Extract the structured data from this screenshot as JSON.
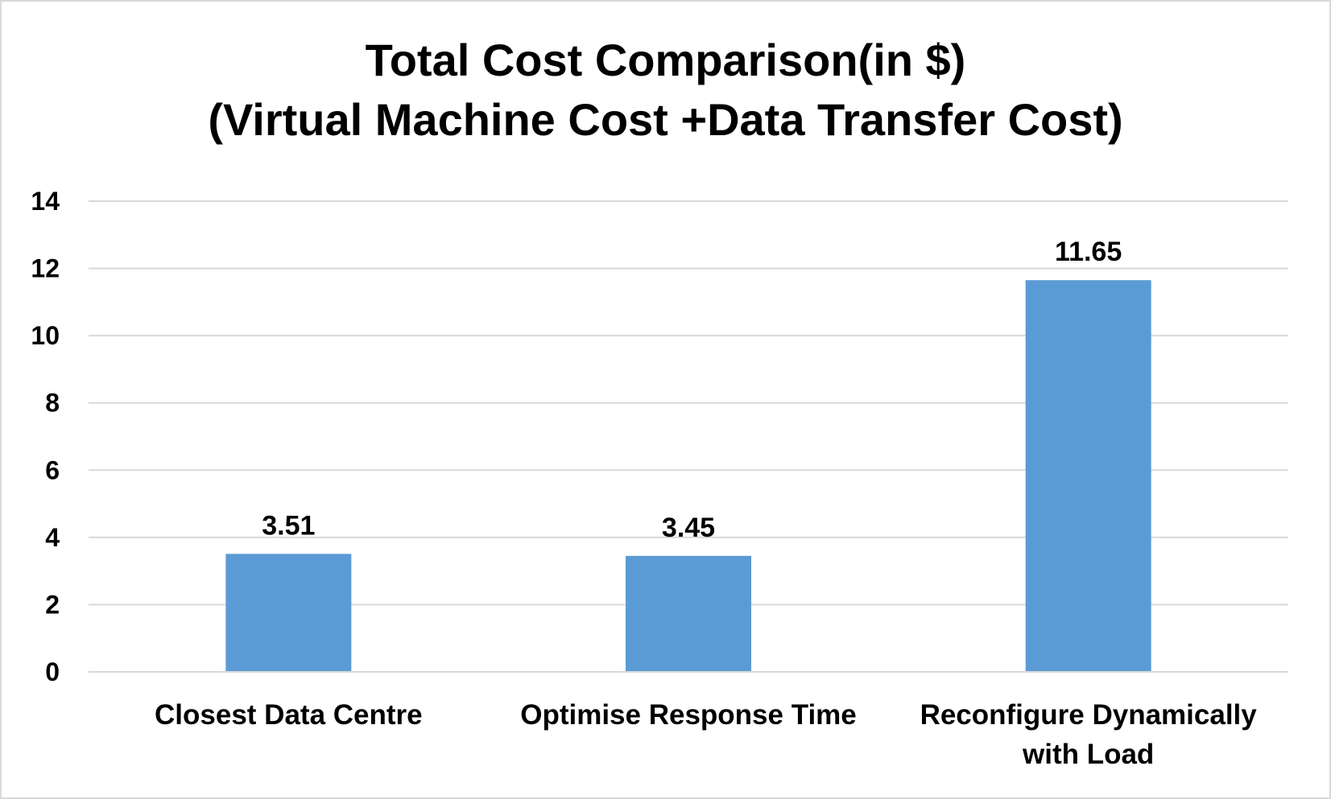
{
  "chart_data": {
    "type": "bar",
    "title": "Total Cost Comparison(in $)",
    "subtitle": "(Virtual Machine Cost +Data Transfer Cost)",
    "categories": [
      [
        "Closest Data Centre"
      ],
      [
        "Optimise Response Time"
      ],
      [
        "Reconfigure Dynamically",
        "with Load"
      ]
    ],
    "values": [
      3.51,
      3.45,
      11.65
    ],
    "data_labels": [
      "3.51",
      "3.45",
      "11.65"
    ],
    "ylim": [
      0,
      14
    ],
    "yticks": [
      0,
      2,
      4,
      6,
      8,
      10,
      12,
      14
    ],
    "grid": true,
    "legend": "none",
    "colors": {
      "bar": "#5b9bd5",
      "grid": "#d9d9d9",
      "axis": "#d9d9d9",
      "text": "#000000"
    }
  }
}
